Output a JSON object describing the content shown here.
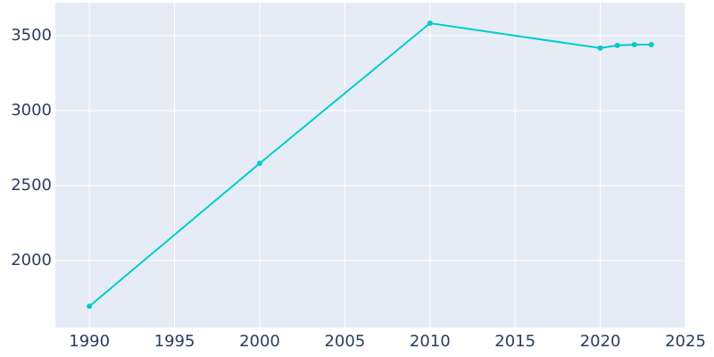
{
  "chart_data": {
    "type": "line",
    "x": [
      1990,
      2000,
      2010,
      2020,
      2021,
      2022,
      2023
    ],
    "series": [
      {
        "color": "#00cccc",
        "values": [
          1696,
          2649,
          3583,
          3417,
          3435,
          3440,
          3440
        ]
      }
    ],
    "xlim": [
      1988,
      2025
    ],
    "xticks": [
      1990,
      1995,
      2000,
      2005,
      2010,
      2015,
      2020,
      2025
    ],
    "ylim": [
      1554,
      3720
    ],
    "yticks": [
      2000,
      2500,
      3000,
      3500
    ],
    "grid": true
  }
}
